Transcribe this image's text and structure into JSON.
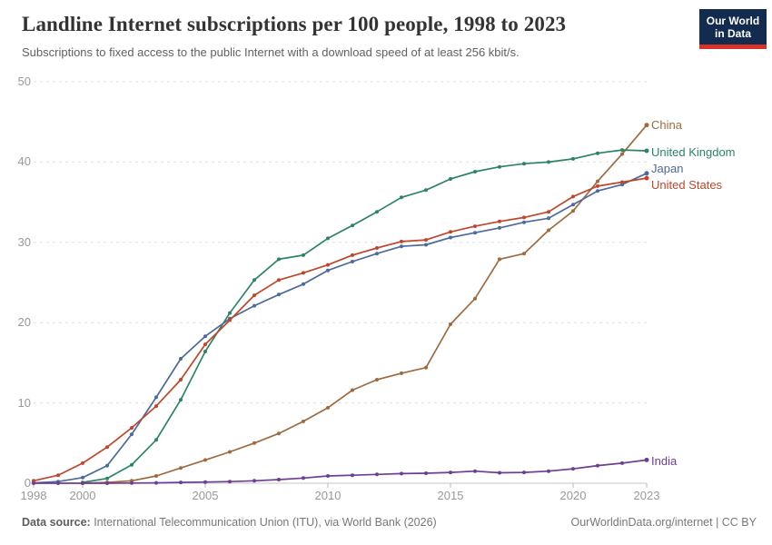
{
  "header": {
    "title": "Landline Internet subscriptions per 100 people, 1998 to 2023",
    "subtitle": "Subscriptions to fixed access to the public Internet with a download speed of at least 256 kbit/s."
  },
  "logo": {
    "line1": "Our World",
    "line2": "in Data",
    "bg_color": "#122B4E",
    "bar_color": "#D8322B"
  },
  "footer": {
    "source_label": "Data source:",
    "source_text": " International Telecommunication Union (ITU), via World Bank (2026)",
    "right_text": "OurWorldinData.org/internet | CC BY"
  },
  "chart_data": {
    "type": "line",
    "title": "Landline Internet subscriptions per 100 people, 1998 to 2023",
    "xlabel": "",
    "ylabel": "",
    "xlim": [
      1998,
      2023
    ],
    "ylim": [
      0,
      50
    ],
    "yticks": [
      0,
      10,
      20,
      30,
      40,
      50
    ],
    "xticks": [
      1998,
      2000,
      2005,
      2010,
      2015,
      2020,
      2023
    ],
    "grid": "horizontal-dashed",
    "legend_position": "right-end-labels",
    "grid_color": "#e0e0e0",
    "axis_color": "#c4c4c4",
    "tick_text_color": "#999999",
    "x": [
      1998,
      1999,
      2000,
      2001,
      2002,
      2003,
      2004,
      2005,
      2006,
      2007,
      2008,
      2009,
      2010,
      2011,
      2012,
      2013,
      2014,
      2015,
      2016,
      2017,
      2018,
      2019,
      2020,
      2021,
      2022,
      2023
    ],
    "series": [
      {
        "name": "China",
        "color": "#9D6B3F",
        "label_dy": 0,
        "values": [
          null,
          null,
          0.0,
          0.1,
          0.3,
          0.9,
          1.9,
          2.9,
          3.9,
          5.0,
          6.2,
          7.7,
          9.4,
          11.6,
          12.9,
          13.7,
          14.4,
          19.8,
          23.0,
          27.9,
          28.6,
          31.5,
          33.9,
          37.6,
          41.0,
          44.6
        ]
      },
      {
        "name": "United Kingdom",
        "color": "#2C8465",
        "label_dy": 2,
        "values": [
          null,
          null,
          0.1,
          0.6,
          2.3,
          5.4,
          10.4,
          16.4,
          21.2,
          25.3,
          27.9,
          28.4,
          30.5,
          32.1,
          33.8,
          35.6,
          36.5,
          37.9,
          38.8,
          39.4,
          39.8,
          40.0,
          40.4,
          41.1,
          41.5,
          41.4
        ]
      },
      {
        "name": "Japan",
        "color": "#4C6A9C",
        "label_dy": -5,
        "values": [
          0.05,
          0.2,
          0.7,
          2.2,
          6.1,
          10.7,
          15.5,
          18.3,
          20.5,
          22.1,
          23.5,
          24.8,
          26.5,
          27.6,
          28.6,
          29.5,
          29.7,
          30.6,
          31.2,
          31.8,
          32.5,
          33.0,
          34.7,
          36.4,
          37.2,
          38.6
        ]
      },
      {
        "name": "United States",
        "color": "#C0462B",
        "label_dy": 8,
        "values": [
          0.3,
          1.0,
          2.5,
          4.5,
          6.9,
          9.6,
          12.9,
          17.3,
          20.3,
          23.4,
          25.3,
          26.2,
          27.2,
          28.4,
          29.3,
          30.1,
          30.3,
          31.3,
          32.0,
          32.6,
          33.1,
          33.8,
          35.7,
          37.0,
          37.5,
          38.0
        ]
      },
      {
        "name": "India",
        "color": "#6D3E91",
        "label_dy": 2,
        "values": [
          0.0,
          0.0,
          0.0,
          0.0,
          0.02,
          0.05,
          0.1,
          0.15,
          0.2,
          0.3,
          0.45,
          0.65,
          0.9,
          1.0,
          1.1,
          1.2,
          1.25,
          1.35,
          1.5,
          1.3,
          1.35,
          1.5,
          1.8,
          2.2,
          2.5,
          2.9
        ]
      }
    ]
  }
}
